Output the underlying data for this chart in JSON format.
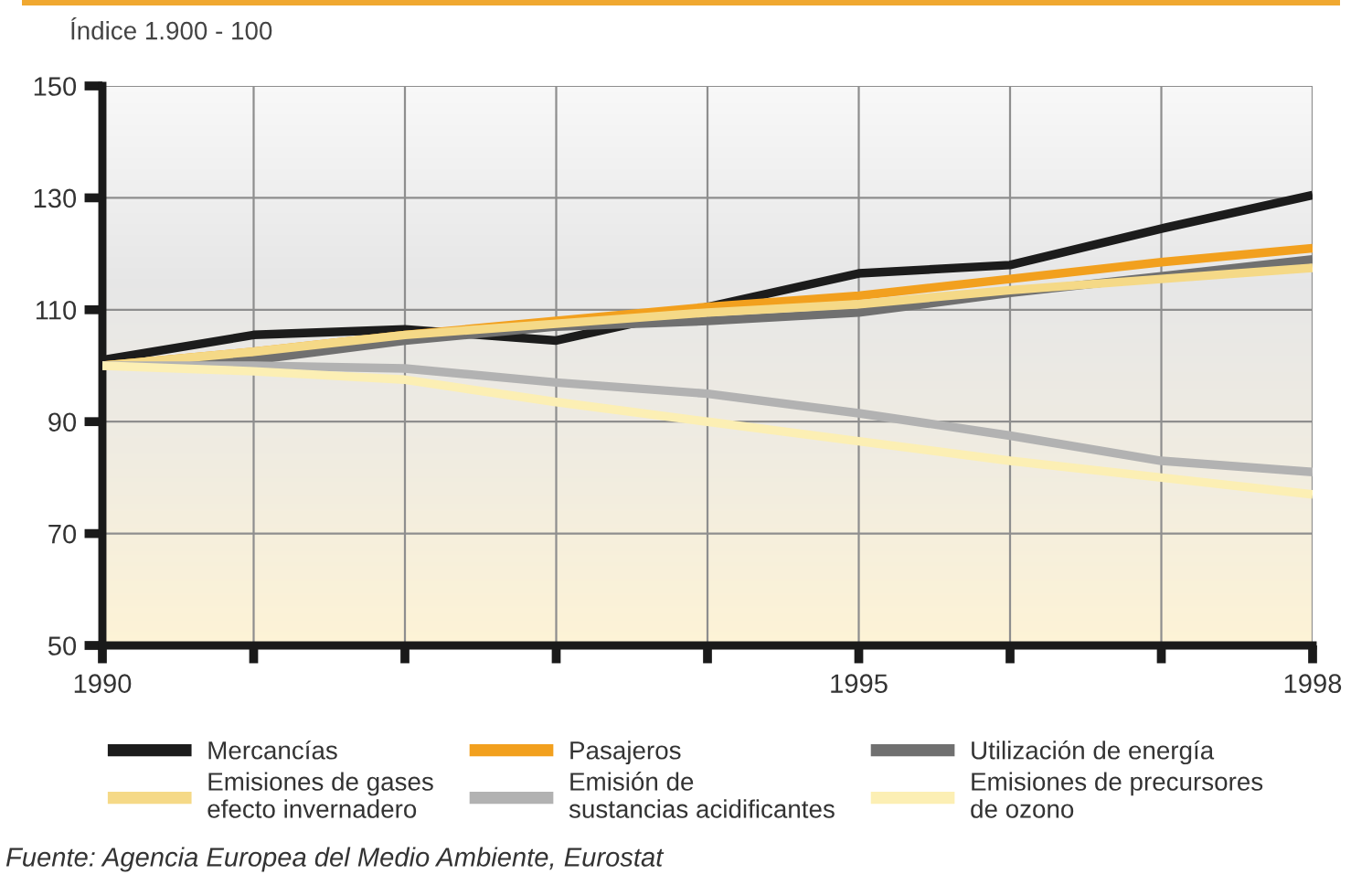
{
  "chart_data": {
    "type": "line",
    "ylabel": "Índice 1.900 - 100",
    "x": [
      1990,
      1991,
      1992,
      1993,
      1994,
      1995,
      1996,
      1997,
      1998
    ],
    "xlim": [
      1990,
      1998
    ],
    "xticks": [
      1990,
      {
        "value": 1991,
        "label": null
      },
      {
        "value": 1992,
        "label": null
      },
      {
        "value": 1993,
        "label": null
      },
      {
        "value": 1994,
        "label": null
      },
      1995,
      {
        "value": 1996,
        "label": null
      },
      {
        "value": 1997,
        "label": null
      },
      1998
    ],
    "ylim": [
      50,
      150
    ],
    "yticks": [
      50,
      70,
      90,
      110,
      130,
      150
    ],
    "grid": true,
    "legend": "bottom",
    "series": [
      {
        "name": "Mercancías",
        "color": "#1c1c1c",
        "values": [
          101,
          105.5,
          106.5,
          104.5,
          110.5,
          116.5,
          118,
          124.5,
          130.5
        ]
      },
      {
        "name": "Pasajeros",
        "color": "#f2a01e",
        "values": [
          100,
          102.5,
          105.5,
          108,
          110.5,
          112.5,
          115.5,
          118.5,
          121
        ]
      },
      {
        "name": "Utilización de energía",
        "color": "#707070",
        "values": [
          100,
          101,
          104.5,
          107,
          108,
          109.5,
          113,
          116,
          119
        ]
      },
      {
        "name": "Emisiones de gases\nefecto invernadero",
        "color": "#f5d987",
        "values": [
          100,
          102.5,
          105.5,
          107.5,
          109.5,
          111,
          113.5,
          115.5,
          117.5
        ]
      },
      {
        "name": "Emisión de\nsustancias acidificantes",
        "color": "#b2b2b2",
        "values": [
          100,
          100,
          99.5,
          97,
          95,
          91.5,
          87.5,
          83,
          81
        ]
      },
      {
        "name": "Emisiones de precursores\nde ozono",
        "color": "#fcefb4",
        "values": [
          100,
          99,
          97.5,
          93.5,
          90,
          86.5,
          83,
          80,
          77
        ]
      }
    ],
    "annotations": [
      "Fuente: Agencia Europea del Medio Ambiente, Eurostat"
    ]
  }
}
